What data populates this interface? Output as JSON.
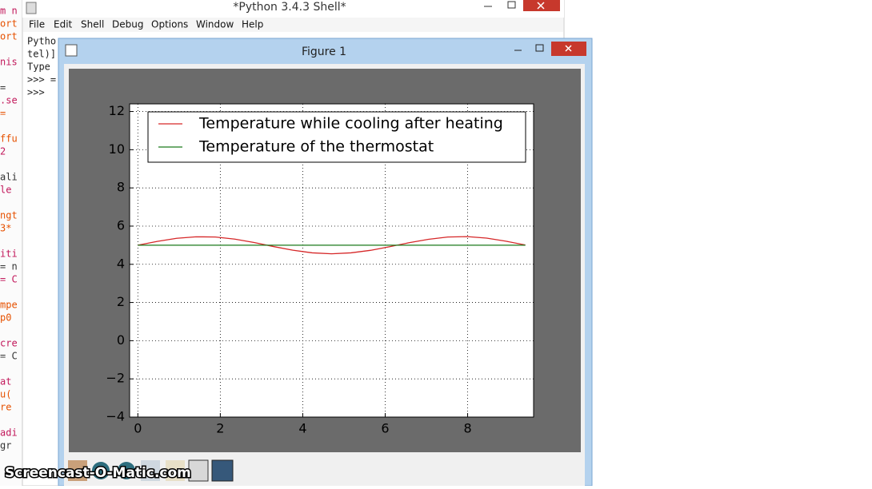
{
  "shell": {
    "title": "*Python 3.4.3 Shell*",
    "menu": [
      "File",
      "Edit",
      "Shell",
      "Debug",
      "Options",
      "Window",
      "Help"
    ],
    "lines": [
      "Pytho",
      "tel)]",
      "Type",
      ">>> =",
      ">>>"
    ]
  },
  "code_fragments": [
    "m n",
    "ort",
    "ort",
    "nis",
    "=",
    ".se",
    "=",
    "ffu",
    "2",
    "ali",
    "le",
    "ngt",
    "3*",
    "iti",
    "= n",
    "= C",
    "mpe",
    "p0",
    "cre",
    "= C",
    "at",
    "u(",
    "re",
    "adi",
    "gr"
  ],
  "figure_window": {
    "title": "Figure 1"
  },
  "watermark": "Screencast-O-Matic.com",
  "chart_data": {
    "type": "line",
    "x": [
      0,
      0.47,
      0.94,
      1.41,
      1.88,
      2.35,
      2.82,
      3.29,
      3.76,
      4.23,
      4.7,
      5.17,
      5.64,
      6.11,
      6.58,
      7.05,
      7.52,
      7.99,
      8.46,
      8.93,
      9.4
    ],
    "series": [
      {
        "name": "Temperature while cooling after heating",
        "color": "#d62728",
        "values": [
          5.0,
          5.2,
          5.36,
          5.44,
          5.43,
          5.32,
          5.14,
          4.93,
          4.74,
          4.6,
          4.55,
          4.6,
          4.73,
          4.92,
          5.13,
          5.31,
          5.43,
          5.45,
          5.37,
          5.21,
          5.01
        ]
      },
      {
        "name": "Temperature of the thermostat",
        "color": "#1a7a1a",
        "values": [
          5,
          5,
          5,
          5,
          5,
          5,
          5,
          5,
          5,
          5,
          5,
          5,
          5,
          5,
          5,
          5,
          5,
          5,
          5,
          5,
          5
        ]
      }
    ],
    "xlim": [
      -0.2,
      9.6
    ],
    "xticks": [
      0,
      2,
      4,
      6,
      8
    ],
    "ylim": [
      -4,
      12.4
    ],
    "yticks": [
      {
        "value": -4,
        "label": "−4"
      },
      {
        "value": -2,
        "label": "−2"
      },
      0,
      2,
      4,
      6,
      8,
      10,
      12
    ],
    "grid": true,
    "legend": "upper left"
  }
}
